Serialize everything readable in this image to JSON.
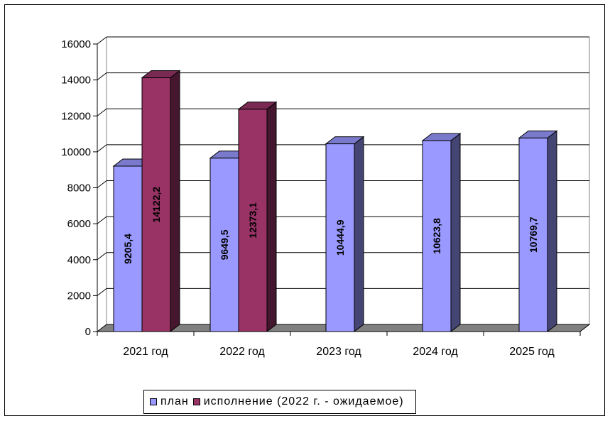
{
  "chart_data": {
    "type": "bar",
    "categories": [
      "2021 год",
      "2022 год",
      "2023 год",
      "2024 год",
      "2025 год"
    ],
    "series": [
      {
        "name": "план",
        "values": [
          9205.4,
          9649.5,
          10444.9,
          10623.8,
          10769.7
        ],
        "labels": [
          "9205,4",
          "9649,5",
          "10444,9",
          "10623,8",
          "10769,7"
        ],
        "color": "#9999ff"
      },
      {
        "name": "исполнение (2022 г. - ожидаемое)",
        "values": [
          14122.2,
          12373.1,
          null,
          null,
          null
        ],
        "labels": [
          "14122,2",
          "12373,1",
          "",
          "",
          ""
        ],
        "color": "#993366"
      }
    ],
    "ylim": [
      0,
      16000
    ],
    "yticks": [
      "0",
      "2000",
      "4000",
      "6000",
      "8000",
      "10000",
      "12000",
      "14000",
      "16000"
    ],
    "grid": true,
    "three_d": true,
    "legend_position": "bottom"
  },
  "legend": {
    "plan_label": "план",
    "actual_label": "исполнение (2022 г. - ожидаемое)"
  }
}
